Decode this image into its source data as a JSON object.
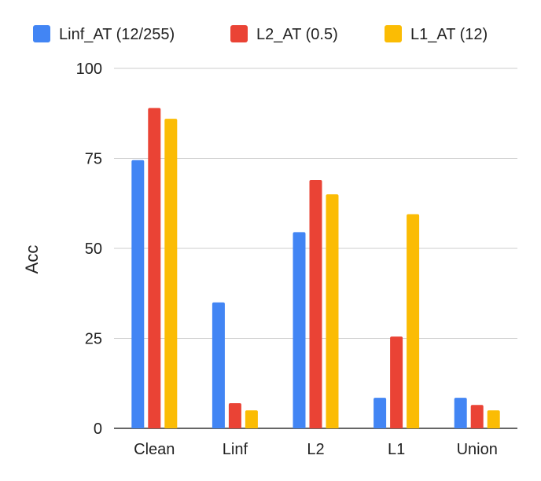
{
  "chart_data": {
    "type": "bar",
    "title": "",
    "xlabel": "",
    "ylabel": "Acc",
    "categories": [
      "Clean",
      "Linf",
      "L2",
      "L1",
      "Union"
    ],
    "series": [
      {
        "name": "Linf_AT (12/255)",
        "color": "#4285F4",
        "values": [
          74.5,
          35,
          54.5,
          8.5,
          8.5
        ]
      },
      {
        "name": "L2_AT (0.5)",
        "color": "#EA4335",
        "values": [
          89,
          7,
          69,
          25.5,
          6.5
        ]
      },
      {
        "name": "L1_AT (12)",
        "color": "#FBBC04",
        "values": [
          86,
          5,
          65,
          59.5,
          5
        ]
      }
    ],
    "ylim": [
      0,
      100
    ],
    "yticks": [
      "0",
      "25",
      "50",
      "75",
      "100"
    ],
    "grid": true,
    "legend_position": "top"
  }
}
